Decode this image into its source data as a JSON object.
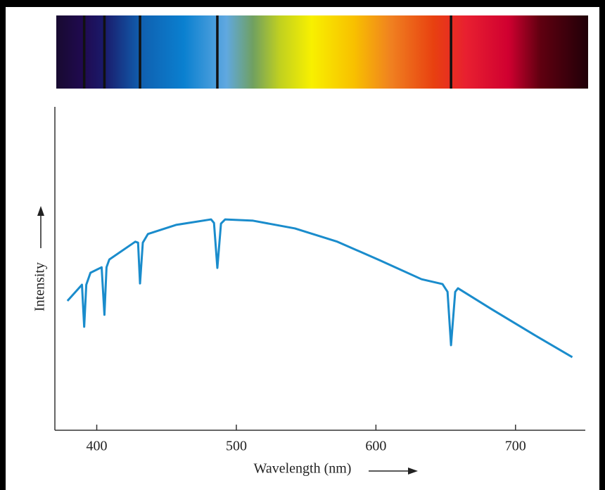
{
  "chart_data": {
    "type": "line",
    "x_label": "Wavelength (nm)",
    "y_label": "Intensity",
    "xlim": [
      370,
      750
    ],
    "ylim": [
      0,
      100
    ],
    "xticks": [
      400,
      500,
      600,
      700
    ],
    "color": "#1a8ccc",
    "absorption_lines": [
      391,
      405.5,
      431,
      486.4,
      653.8
    ],
    "x": [
      379,
      389.4,
      391,
      392.5,
      395.5,
      403.5,
      405.5,
      407,
      409,
      427.6,
      429.6,
      431,
      433,
      436.7,
      456.8,
      481.9,
      484,
      486.4,
      489,
      492,
      512,
      542,
      572.4,
      602.5,
      632.7,
      647.7,
      651.3,
      653.8,
      656.8,
      658.8,
      683,
      713,
      740.7
    ],
    "values": [
      40,
      45,
      32,
      45,
      48.7,
      50.4,
      35.7,
      50.4,
      52.8,
      58.3,
      58,
      45.4,
      58,
      60.7,
      63.5,
      65.2,
      64.1,
      50.2,
      63.9,
      65.2,
      64.8,
      62.4,
      58.3,
      52.6,
      46.7,
      45.2,
      42.8,
      26.3,
      42.8,
      43.9,
      37.4,
      29.6,
      22.6
    ]
  }
}
